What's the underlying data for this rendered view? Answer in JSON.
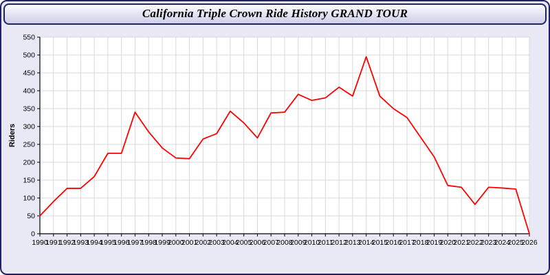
{
  "header": {
    "title": "California Triple Crown Ride History GRAND TOUR"
  },
  "chart_data": {
    "type": "line",
    "title": "California Triple Crown Ride History GRAND TOUR",
    "xlabel": "",
    "ylabel": "Riders",
    "ylim": [
      0,
      550
    ],
    "ytick_step": 50,
    "grid": true,
    "legend_position": "none",
    "line_color": "#ff0000",
    "plot_bg": "#ffffff",
    "grid_color": "#d8d8d8",
    "axis_color": "#000000",
    "x": [
      1990,
      1991,
      1992,
      1993,
      1994,
      1995,
      1996,
      1997,
      1998,
      1999,
      2000,
      2001,
      2002,
      2003,
      2004,
      2005,
      2006,
      2007,
      2008,
      2009,
      2010,
      2011,
      2012,
      2013,
      2014,
      2015,
      2016,
      2017,
      2018,
      2019,
      2020,
      2021,
      2022,
      2023,
      2024,
      2025,
      2026
    ],
    "series": [
      {
        "name": "Riders",
        "values": [
          50,
          90,
          127,
          127,
          160,
          225,
          225,
          340,
          285,
          240,
          212,
          210,
          265,
          280,
          343,
          310,
          268,
          338,
          340,
          390,
          373,
          380,
          410,
          385,
          495,
          385,
          350,
          325,
          270,
          215,
          135,
          130,
          82,
          130,
          128,
          125,
          0
        ]
      }
    ]
  }
}
